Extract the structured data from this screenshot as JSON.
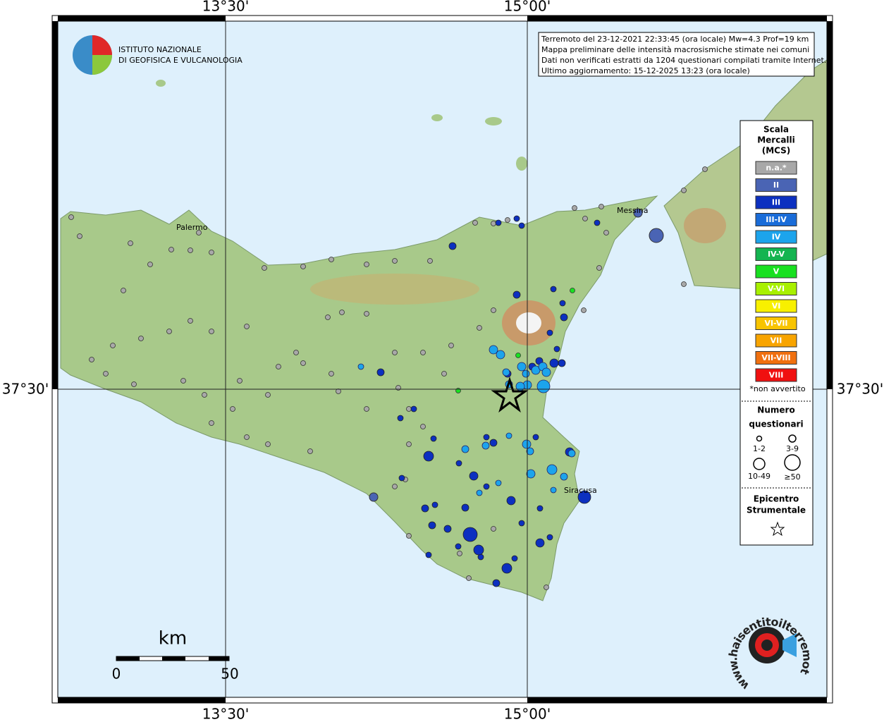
{
  "frame": {
    "top_labels": [
      "13°30'",
      "15°00'"
    ],
    "bottom_labels": [
      "13°30'",
      "15°00'"
    ],
    "left_label": "37°30'",
    "right_label": "37°30'"
  },
  "logo": {
    "line1": "ISTITUTO NAZIONALE",
    "line2": "DI GEOFISICA E VULCANOLOGIA"
  },
  "info": {
    "lines": [
      "Terremoto del 23-12-2021 22:33:45 (ora locale) Mw=4.3 Prof=19 km",
      "Mappa preliminare delle intensità macrosismiche stimate nei comuni",
      "Dati non verificati estratti da 1204 questionari compilati tramite Internet.",
      "Ultimo aggiornamento: 15-12-2025 13:23 (ora locale)"
    ]
  },
  "places": [
    "Palermo",
    "Messina",
    "Siracusa"
  ],
  "legend": {
    "title": [
      "Scala",
      "Mercalli",
      "(MCS)"
    ],
    "classes": [
      {
        "label": "n.a.*",
        "color": "#a8a8a8"
      },
      {
        "label": "II",
        "color": "#4a64b4"
      },
      {
        "label": "III",
        "color": "#0c30c0"
      },
      {
        "label": "III-IV",
        "color": "#1a6cd8"
      },
      {
        "label": "IV",
        "color": "#1ca4ec"
      },
      {
        "label": "IV-V",
        "color": "#14b450"
      },
      {
        "label": "V",
        "color": "#18e020"
      },
      {
        "label": "V-VI",
        "color": "#a8f000"
      },
      {
        "label": "VI",
        "color": "#f8f000"
      },
      {
        "label": "VI-VII",
        "color": "#f8c400"
      },
      {
        "label": "VII",
        "color": "#f8a400"
      },
      {
        "label": "VII-VIII",
        "color": "#f07010"
      },
      {
        "label": "VIII",
        "color": "#f01010"
      }
    ],
    "note": "*non avvertito",
    "count_title": [
      "Numero",
      "questionari"
    ],
    "sizes": [
      "1-2",
      "3-9",
      "10-49",
      "≥50"
    ],
    "epicenter_title": [
      "Epicentro",
      "Strumentale"
    ]
  },
  "scale": {
    "unit": "km",
    "start": "0",
    "end": "50"
  },
  "site": "www.haisentitoilterremoto.it"
}
